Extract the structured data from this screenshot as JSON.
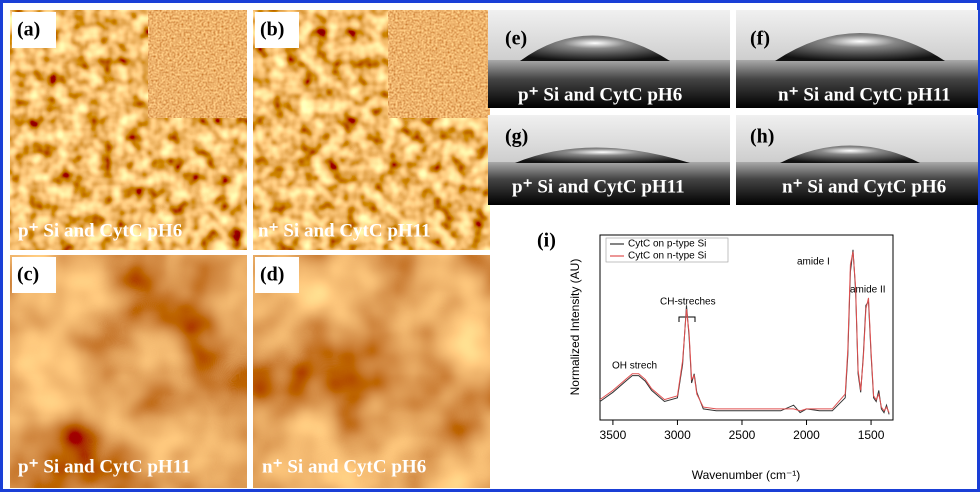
{
  "panels": [
    {
      "label": "(a)",
      "caption": "p⁺ Si and CytC pH6"
    },
    {
      "label": "(b)",
      "caption": "n⁺ Si and CytC pH11"
    },
    {
      "label": "(c)",
      "caption": "p⁺ Si and CytC pH11"
    },
    {
      "label": "(d)",
      "caption": "n⁺ Si and CytC pH6"
    },
    {
      "label": "(e)",
      "caption": "p⁺ Si and CytC pH6"
    },
    {
      "label": "(f)",
      "caption": "n⁺ Si and CytC pH11"
    },
    {
      "label": "(g)",
      "caption": "p⁺ Si and CytC pH11"
    },
    {
      "label": "(h)",
      "caption": "n⁺ Si and CytC pH6"
    }
  ],
  "chart_data": {
    "type": "line",
    "panel_label": "(i)",
    "x_label": "Wavenumber (cm⁻¹)",
    "y_label": "Normalized Intensity (AU)",
    "xlim": [
      3600,
      1330
    ],
    "xticks": [
      3500,
      3000,
      2500,
      2000,
      1500
    ],
    "ylim": [
      0,
      1
    ],
    "legend": "top-left",
    "annotations": [
      "OH strech",
      "CH-streches",
      "amide I",
      "amide II"
    ],
    "x": [
      3600,
      3500,
      3400,
      3350,
      3300,
      3250,
      3200,
      3100,
      3000,
      2960,
      2930,
      2910,
      2890,
      2870,
      2850,
      2800,
      2700,
      2600,
      2500,
      2400,
      2300,
      2200,
      2100,
      2050,
      2000,
      1900,
      1800,
      1700,
      1680,
      1660,
      1640,
      1620,
      1600,
      1580,
      1560,
      1540,
      1520,
      1500,
      1480,
      1460,
      1440,
      1420,
      1400,
      1380,
      1360
    ],
    "series": [
      {
        "name": "CytC on p-type Si",
        "color": "#333333",
        "values": [
          0.1,
          0.15,
          0.21,
          0.24,
          0.24,
          0.21,
          0.16,
          0.1,
          0.12,
          0.3,
          0.62,
          0.45,
          0.2,
          0.25,
          0.15,
          0.06,
          0.05,
          0.05,
          0.05,
          0.05,
          0.05,
          0.05,
          0.08,
          0.04,
          0.06,
          0.05,
          0.05,
          0.12,
          0.35,
          0.8,
          0.92,
          0.7,
          0.25,
          0.15,
          0.35,
          0.62,
          0.64,
          0.35,
          0.12,
          0.1,
          0.16,
          0.06,
          0.04,
          0.08,
          0.03
        ]
      },
      {
        "name": "CytC on n-type Si",
        "color": "#e05050",
        "values": [
          0.11,
          0.16,
          0.22,
          0.25,
          0.25,
          0.22,
          0.17,
          0.11,
          0.13,
          0.32,
          0.6,
          0.47,
          0.22,
          0.24,
          0.14,
          0.07,
          0.06,
          0.06,
          0.06,
          0.06,
          0.06,
          0.06,
          0.06,
          0.05,
          0.06,
          0.06,
          0.06,
          0.14,
          0.38,
          0.84,
          0.91,
          0.72,
          0.27,
          0.16,
          0.33,
          0.6,
          0.66,
          0.37,
          0.13,
          0.11,
          0.14,
          0.07,
          0.05,
          0.07,
          0.04
        ]
      }
    ]
  }
}
